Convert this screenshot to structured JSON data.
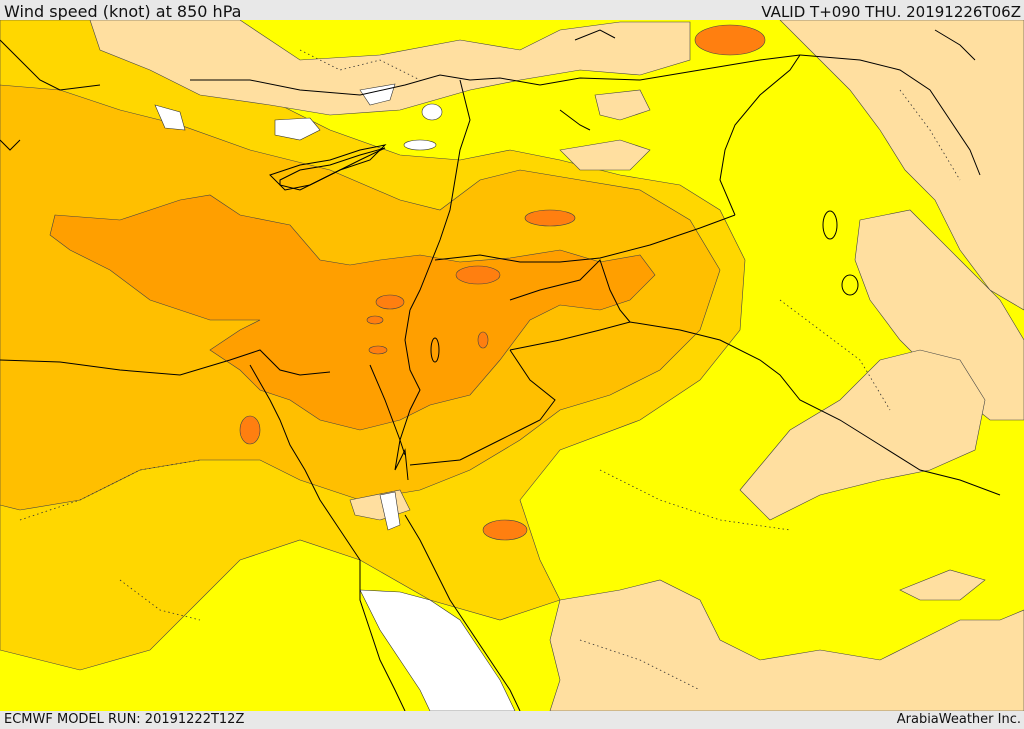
{
  "header": {
    "title": "Wind speed (knot) at 850 hPa",
    "valid": "VALID T+090 THU. 20191226T06Z"
  },
  "footer": {
    "model_run": "ECMWF MODEL RUN: 20191222T12Z",
    "brand": "ArabiaWeather Inc."
  },
  "colors": {
    "background": "#ffff00",
    "band_light": "#ffd700",
    "band_mid": "#ffbf00",
    "band_strong": "#ff9f00",
    "band_peak": "#ff7f10",
    "calm": "#ffdfa0",
    "sea_no_data": "#ffffff",
    "borders": "#000000"
  }
}
